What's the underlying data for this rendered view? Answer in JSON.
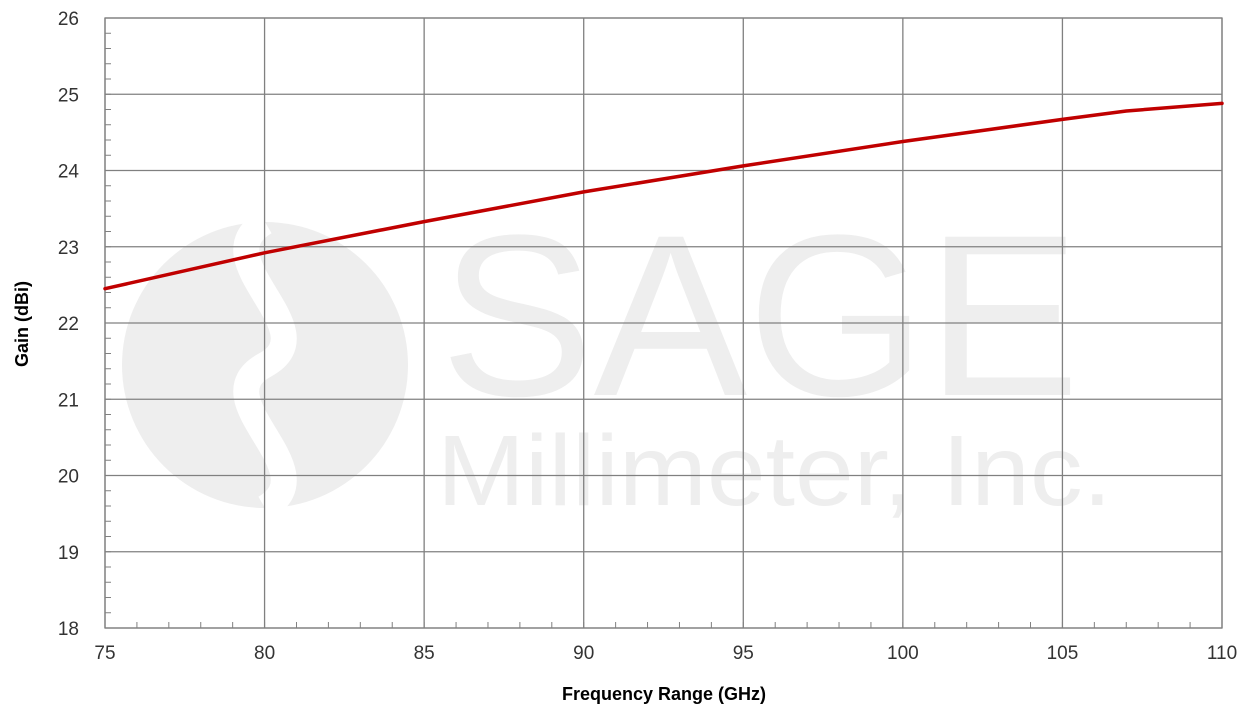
{
  "chart_data": {
    "type": "line",
    "title": "",
    "xlabel": "Frequency Range (GHz)",
    "ylabel": "Gain (dBi)",
    "xlim": [
      75,
      110
    ],
    "ylim": [
      18,
      26
    ],
    "x_ticks": [
      75,
      80,
      85,
      90,
      95,
      100,
      105,
      110
    ],
    "y_ticks": [
      18,
      19,
      20,
      21,
      22,
      23,
      24,
      25,
      26
    ],
    "grid": true,
    "legend": "none",
    "series": [
      {
        "color": "#c00000",
        "x": [
          75,
          80,
          85,
          90,
          95,
          100,
          105,
          107,
          110
        ],
        "y": [
          22.45,
          22.92,
          23.33,
          23.72,
          24.06,
          24.38,
          24.67,
          24.78,
          24.88
        ]
      }
    ]
  },
  "watermark": {
    "line1": "SAGE",
    "line2": "Millimeter, Inc."
  },
  "colors": {
    "grid": "#808080",
    "axis": "#808080",
    "watermark": "#eeeeee"
  }
}
